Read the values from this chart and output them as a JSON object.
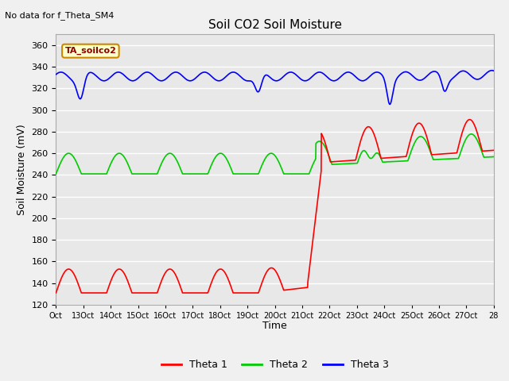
{
  "title": "Soil CO2 Soil Moisture",
  "subtitle": "No data for f_Theta_SM4",
  "ylabel": "Soil Moisture (mV)",
  "xlabel": "Time",
  "annotation": "TA_soilco2",
  "ylim": [
    120,
    370
  ],
  "yticks": [
    120,
    140,
    160,
    180,
    200,
    220,
    240,
    260,
    280,
    300,
    320,
    340,
    360
  ],
  "xtick_labels": [
    "Oct",
    "13Oct",
    "14Oct",
    "15Oct",
    "16Oct",
    "17Oct",
    "18Oct",
    "19Oct",
    "20Oct",
    "21Oct",
    "22Oct",
    "23Oct",
    "24Oct",
    "25Oct",
    "26Oct",
    "27Oct",
    "28"
  ],
  "bg_color": "#e8e8e8",
  "grid_color": "#ffffff",
  "theta1_color": "#ff0000",
  "theta2_color": "#00cc00",
  "theta3_color": "#0000ff",
  "legend_labels": [
    "Theta 1",
    "Theta 2",
    "Theta 3"
  ],
  "fig_facecolor": "#f0f0f0"
}
